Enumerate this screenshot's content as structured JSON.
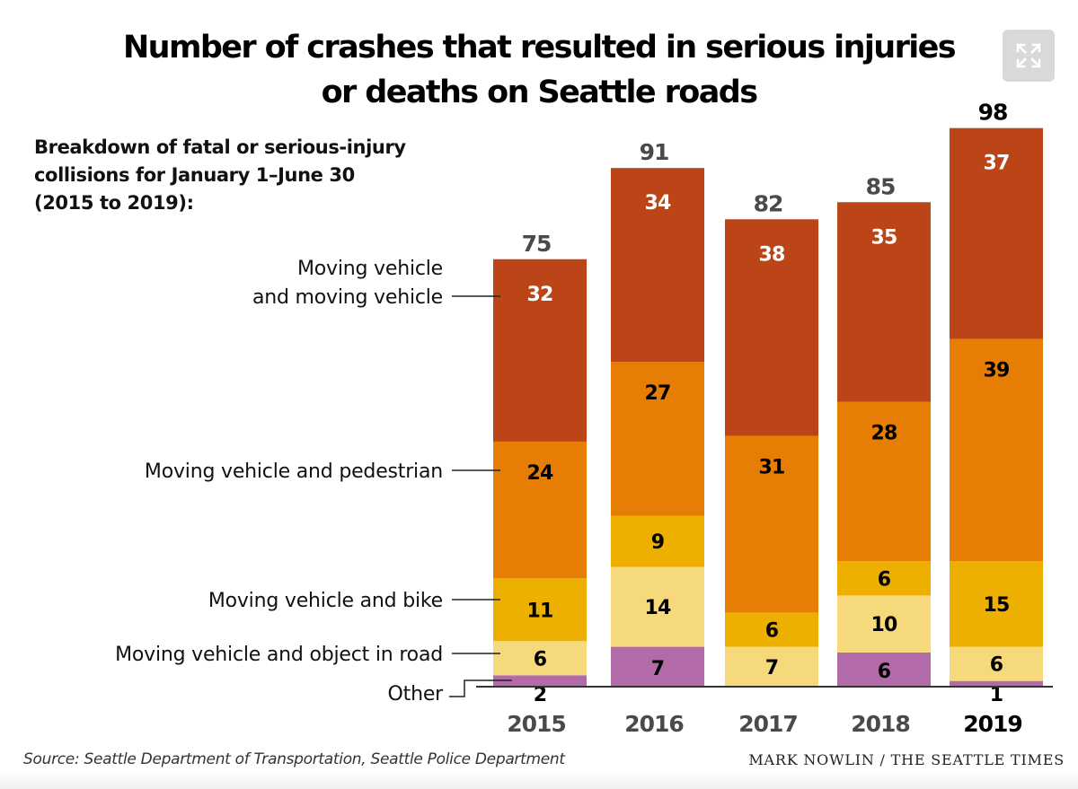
{
  "chart_data": {
    "type": "bar",
    "stacked": true,
    "title": "Number of crashes that resulted in serious injuries or deaths on Seattle roads",
    "title_lines": [
      "Number of crashes that resulted in serious injuries",
      "or deaths on Seattle roads"
    ],
    "subtitle": "Breakdown of fatal or serious-injury collisions for January 1–June 30 (2015 to 2019):",
    "subtitle_lines": [
      "Breakdown of fatal or serious-injury",
      "collisions for January 1–June 30",
      "(2015 to 2019):"
    ],
    "categories": [
      "2015",
      "2016",
      "2017",
      "2018",
      "2019"
    ],
    "highlight_category": "2019",
    "totals": [
      75,
      91,
      82,
      85,
      98
    ],
    "series": [
      {
        "name": "Other",
        "color": "#b36aa8",
        "label_color": "#000000",
        "values": [
          2,
          7,
          0,
          6,
          1
        ]
      },
      {
        "name": "Moving vehicle and object in road",
        "color": "#f6d97a",
        "label_color": "#000000",
        "values": [
          6,
          14,
          7,
          10,
          6
        ]
      },
      {
        "name": "Moving vehicle and bike",
        "color": "#eeb000",
        "label_color": "#000000",
        "values": [
          11,
          9,
          6,
          6,
          15
        ]
      },
      {
        "name": "Moving vehicle and pedestrian",
        "color": "#e67e05",
        "label_color": "#000000",
        "values": [
          24,
          27,
          31,
          28,
          39
        ]
      },
      {
        "name": "Moving vehicle and moving vehicle",
        "color": "#bb4516",
        "label_color": "#ffffff",
        "values": [
          32,
          34,
          38,
          35,
          37
        ]
      }
    ],
    "legend": {
      "placement": "left",
      "style": "direct-labels-with-leader-lines",
      "entries": [
        {
          "series": "Moving vehicle and moving vehicle",
          "lines": [
            "Moving vehicle",
            "and moving vehicle"
          ]
        },
        {
          "series": "Moving vehicle and pedestrian",
          "lines": [
            "Moving vehicle and pedestrian"
          ]
        },
        {
          "series": "Moving vehicle and bike",
          "lines": [
            "Moving vehicle and bike"
          ]
        },
        {
          "series": "Moving vehicle and object in road",
          "lines": [
            "Moving vehicle and object in road"
          ]
        },
        {
          "series": "Other",
          "lines": [
            "Other"
          ]
        }
      ]
    },
    "xlabel": "",
    "ylabel": "",
    "ylim": [
      0,
      98
    ],
    "grid": false,
    "y_axis_visible": false
  },
  "footer": {
    "source": "Source: Seattle Department of Transportation, Seattle Police Department",
    "credit": "MARK NOWLIN / THE SEATTLE TIMES"
  },
  "controls": {
    "expand_icon": "expand-arrows-icon"
  }
}
